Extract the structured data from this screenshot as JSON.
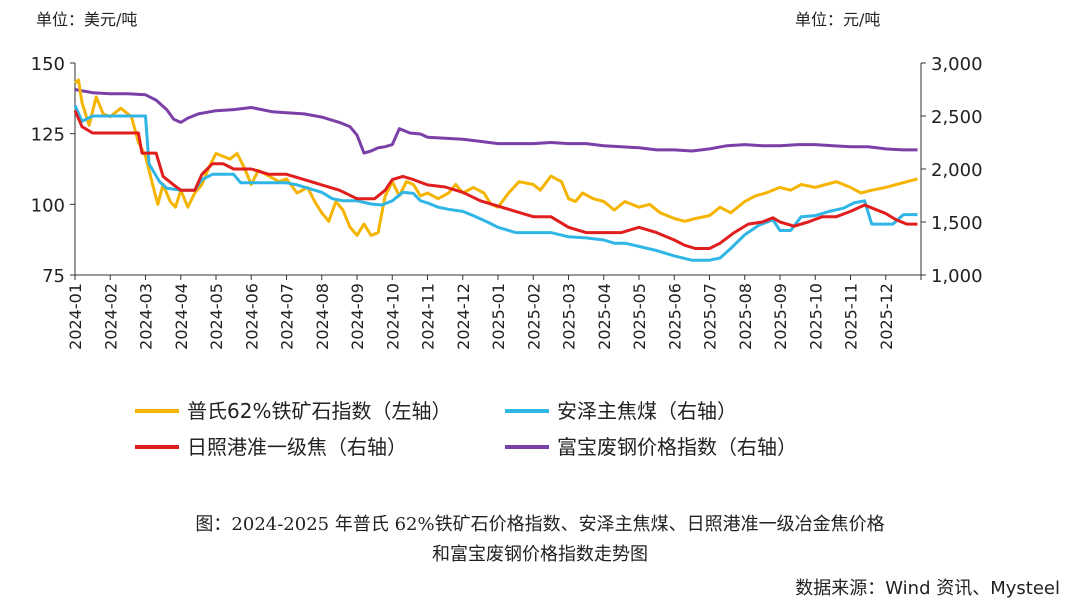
{
  "left_unit": "单位：美元/吨",
  "right_unit": "单位：元/吨",
  "caption_line1": "图：2024-2025 年普氏 62%铁矿石价格指数、安泽主焦煤、日照港准一级冶金焦价格",
  "caption_line2": "和富宝废钢价格指数走势图",
  "source": "数据来源：Wind 资讯、Mysteel",
  "chart_data": {
    "type": "line",
    "x_ticks": [
      "2024-01",
      "2024-02",
      "2024-03",
      "2024-04",
      "2024-05",
      "2024-06",
      "2024-07",
      "2024-08",
      "2024-09",
      "2024-10",
      "2024-11",
      "2024-12",
      "2025-01",
      "2025-02",
      "2025-03",
      "2025-04",
      "2025-05",
      "2025-06",
      "2025-07",
      "2025-08",
      "2025-09",
      "2025-10",
      "2025-11",
      "2025-12"
    ],
    "y_left": {
      "range": [
        75,
        150
      ],
      "ticks": [
        "75",
        "100",
        "125",
        "150"
      ]
    },
    "y_right": {
      "range": [
        1000,
        3000
      ],
      "ticks": [
        "1,000",
        "1,500",
        "2,000",
        "2,500",
        "3,000"
      ]
    },
    "series": [
      {
        "name": "普氏62%铁矿石指数（左轴）",
        "axis": "left",
        "color": "#F5B400",
        "points": [
          [
            0,
            143
          ],
          [
            0.1,
            144
          ],
          [
            0.2,
            136
          ],
          [
            0.4,
            128
          ],
          [
            0.6,
            138
          ],
          [
            0.8,
            132
          ],
          [
            1,
            131
          ],
          [
            1.3,
            134
          ],
          [
            1.6,
            131
          ],
          [
            1.8,
            122
          ],
          [
            2.0,
            117
          ],
          [
            2.2,
            107
          ],
          [
            2.35,
            100
          ],
          [
            2.5,
            107
          ],
          [
            2.7,
            101
          ],
          [
            2.85,
            99
          ],
          [
            3.0,
            105
          ],
          [
            3.2,
            99
          ],
          [
            3.4,
            104
          ],
          [
            3.6,
            107
          ],
          [
            3.8,
            113
          ],
          [
            4.0,
            118
          ],
          [
            4.2,
            117
          ],
          [
            4.4,
            116
          ],
          [
            4.6,
            118
          ],
          [
            4.8,
            113
          ],
          [
            5.0,
            107
          ],
          [
            5.2,
            112
          ],
          [
            5.5,
            110
          ],
          [
            5.8,
            108
          ],
          [
            6.0,
            109
          ],
          [
            6.3,
            104
          ],
          [
            6.6,
            106
          ],
          [
            6.8,
            101
          ],
          [
            7.0,
            97
          ],
          [
            7.2,
            94
          ],
          [
            7.4,
            101
          ],
          [
            7.6,
            98
          ],
          [
            7.8,
            92
          ],
          [
            8.0,
            89
          ],
          [
            8.2,
            93
          ],
          [
            8.4,
            89
          ],
          [
            8.6,
            90
          ],
          [
            8.8,
            103
          ],
          [
            9.0,
            108
          ],
          [
            9.2,
            103
          ],
          [
            9.4,
            108
          ],
          [
            9.6,
            107
          ],
          [
            9.8,
            103
          ],
          [
            10.0,
            104
          ],
          [
            10.3,
            102
          ],
          [
            10.6,
            104
          ],
          [
            10.8,
            107
          ],
          [
            11.0,
            104
          ],
          [
            11.3,
            106
          ],
          [
            11.6,
            104
          ],
          [
            11.8,
            100
          ],
          [
            12.0,
            99
          ],
          [
            12.3,
            104
          ],
          [
            12.6,
            108
          ],
          [
            13.0,
            107
          ],
          [
            13.2,
            105
          ],
          [
            13.5,
            110
          ],
          [
            13.8,
            108
          ],
          [
            14.0,
            102
          ],
          [
            14.2,
            101
          ],
          [
            14.4,
            104
          ],
          [
            14.7,
            102
          ],
          [
            15.0,
            101
          ],
          [
            15.3,
            98
          ],
          [
            15.6,
            101
          ],
          [
            16.0,
            99
          ],
          [
            16.3,
            100
          ],
          [
            16.6,
            97
          ],
          [
            17.0,
            95
          ],
          [
            17.3,
            94
          ],
          [
            17.6,
            95
          ],
          [
            18.0,
            96
          ],
          [
            18.3,
            99
          ],
          [
            18.6,
            97
          ],
          [
            19.0,
            101
          ],
          [
            19.3,
            103
          ],
          [
            19.6,
            104
          ],
          [
            20.0,
            106
          ],
          [
            20.3,
            105
          ],
          [
            20.6,
            107
          ],
          [
            21.0,
            106
          ],
          [
            21.3,
            107
          ],
          [
            21.6,
            108
          ],
          [
            22.0,
            106
          ],
          [
            22.3,
            104
          ],
          [
            22.6,
            105
          ],
          [
            23.0,
            106
          ],
          [
            23.3,
            107
          ],
          [
            23.6,
            108
          ],
          [
            23.9,
            109
          ]
        ]
      },
      {
        "name": "安泽主焦煤（右轴）",
        "axis": "right",
        "color": "#2FB5E6",
        "points": [
          [
            0,
            2600
          ],
          [
            0.2,
            2450
          ],
          [
            0.5,
            2500
          ],
          [
            1.0,
            2500
          ],
          [
            2.0,
            2500
          ],
          [
            2.1,
            2050
          ],
          [
            2.4,
            1880
          ],
          [
            2.6,
            1820
          ],
          [
            3.0,
            1800
          ],
          [
            3.4,
            1800
          ],
          [
            3.6,
            1900
          ],
          [
            3.9,
            1950
          ],
          [
            4.2,
            1950
          ],
          [
            4.5,
            1950
          ],
          [
            4.7,
            1870
          ],
          [
            5.0,
            1870
          ],
          [
            5.5,
            1870
          ],
          [
            6.0,
            1870
          ],
          [
            6.3,
            1850
          ],
          [
            6.6,
            1820
          ],
          [
            7.0,
            1780
          ],
          [
            7.3,
            1720
          ],
          [
            7.6,
            1700
          ],
          [
            8.0,
            1700
          ],
          [
            8.4,
            1670
          ],
          [
            8.7,
            1660
          ],
          [
            9.0,
            1700
          ],
          [
            9.3,
            1780
          ],
          [
            9.6,
            1770
          ],
          [
            9.8,
            1700
          ],
          [
            10.0,
            1680
          ],
          [
            10.3,
            1640
          ],
          [
            10.6,
            1620
          ],
          [
            11.0,
            1600
          ],
          [
            11.3,
            1560
          ],
          [
            11.7,
            1500
          ],
          [
            12.0,
            1450
          ],
          [
            12.5,
            1400
          ],
          [
            13.0,
            1400
          ],
          [
            13.5,
            1400
          ],
          [
            14.0,
            1360
          ],
          [
            14.5,
            1350
          ],
          [
            15.0,
            1330
          ],
          [
            15.3,
            1300
          ],
          [
            15.6,
            1300
          ],
          [
            16.0,
            1270
          ],
          [
            16.5,
            1230
          ],
          [
            17.0,
            1180
          ],
          [
            17.5,
            1140
          ],
          [
            18.0,
            1140
          ],
          [
            18.3,
            1160
          ],
          [
            18.6,
            1250
          ],
          [
            19.0,
            1380
          ],
          [
            19.4,
            1470
          ],
          [
            19.8,
            1520
          ],
          [
            20.0,
            1420
          ],
          [
            20.3,
            1420
          ],
          [
            20.6,
            1550
          ],
          [
            21.0,
            1560
          ],
          [
            21.4,
            1600
          ],
          [
            21.8,
            1630
          ],
          [
            22.1,
            1680
          ],
          [
            22.4,
            1700
          ],
          [
            22.6,
            1480
          ],
          [
            22.8,
            1480
          ],
          [
            23.2,
            1480
          ],
          [
            23.5,
            1570
          ],
          [
            23.9,
            1570
          ]
        ]
      },
      {
        "name": "日照港准一级焦（右轴）",
        "axis": "right",
        "color": "#E01E1E",
        "points": [
          [
            0,
            2550
          ],
          [
            0.2,
            2400
          ],
          [
            0.5,
            2340
          ],
          [
            1.0,
            2340
          ],
          [
            1.8,
            2340
          ],
          [
            1.9,
            2150
          ],
          [
            2.3,
            2150
          ],
          [
            2.5,
            1930
          ],
          [
            2.8,
            1850
          ],
          [
            3.0,
            1800
          ],
          [
            3.4,
            1800
          ],
          [
            3.6,
            1950
          ],
          [
            3.9,
            2050
          ],
          [
            4.2,
            2050
          ],
          [
            4.5,
            2000
          ],
          [
            5.0,
            2000
          ],
          [
            5.5,
            1950
          ],
          [
            6.0,
            1950
          ],
          [
            6.5,
            1900
          ],
          [
            7.0,
            1850
          ],
          [
            7.5,
            1800
          ],
          [
            8.0,
            1720
          ],
          [
            8.5,
            1720
          ],
          [
            8.8,
            1800
          ],
          [
            9.0,
            1900
          ],
          [
            9.3,
            1930
          ],
          [
            9.6,
            1900
          ],
          [
            10.0,
            1850
          ],
          [
            10.5,
            1830
          ],
          [
            11.0,
            1780
          ],
          [
            11.5,
            1700
          ],
          [
            12.0,
            1650
          ],
          [
            12.5,
            1600
          ],
          [
            13.0,
            1550
          ],
          [
            13.5,
            1550
          ],
          [
            14.0,
            1450
          ],
          [
            14.5,
            1400
          ],
          [
            15.0,
            1400
          ],
          [
            15.5,
            1400
          ],
          [
            16.0,
            1450
          ],
          [
            16.5,
            1400
          ],
          [
            17.0,
            1330
          ],
          [
            17.3,
            1280
          ],
          [
            17.6,
            1250
          ],
          [
            18.0,
            1250
          ],
          [
            18.3,
            1300
          ],
          [
            18.7,
            1400
          ],
          [
            19.1,
            1480
          ],
          [
            19.5,
            1500
          ],
          [
            19.8,
            1540
          ],
          [
            20.0,
            1500
          ],
          [
            20.4,
            1460
          ],
          [
            20.8,
            1500
          ],
          [
            21.2,
            1550
          ],
          [
            21.6,
            1550
          ],
          [
            22.0,
            1600
          ],
          [
            22.4,
            1660
          ],
          [
            22.7,
            1620
          ],
          [
            23.0,
            1580
          ],
          [
            23.3,
            1520
          ],
          [
            23.6,
            1480
          ],
          [
            23.9,
            1480
          ]
        ]
      },
      {
        "name": "富宝废钢价格指数（右轴）",
        "axis": "right",
        "color": "#7B3FA8",
        "points": [
          [
            0,
            2750
          ],
          [
            0.5,
            2720
          ],
          [
            1.0,
            2710
          ],
          [
            1.5,
            2710
          ],
          [
            2.0,
            2700
          ],
          [
            2.3,
            2650
          ],
          [
            2.6,
            2560
          ],
          [
            2.8,
            2470
          ],
          [
            3.0,
            2440
          ],
          [
            3.2,
            2480
          ],
          [
            3.5,
            2520
          ],
          [
            4.0,
            2550
          ],
          [
            4.5,
            2560
          ],
          [
            5.0,
            2580
          ],
          [
            5.3,
            2560
          ],
          [
            5.6,
            2540
          ],
          [
            6.0,
            2530
          ],
          [
            6.5,
            2520
          ],
          [
            7.0,
            2490
          ],
          [
            7.5,
            2440
          ],
          [
            7.8,
            2400
          ],
          [
            8.0,
            2320
          ],
          [
            8.2,
            2150
          ],
          [
            8.4,
            2170
          ],
          [
            8.6,
            2200
          ],
          [
            8.8,
            2210
          ],
          [
            9.0,
            2230
          ],
          [
            9.2,
            2380
          ],
          [
            9.5,
            2340
          ],
          [
            9.8,
            2330
          ],
          [
            10.0,
            2300
          ],
          [
            10.5,
            2290
          ],
          [
            11.0,
            2280
          ],
          [
            11.5,
            2260
          ],
          [
            12.0,
            2240
          ],
          [
            12.5,
            2240
          ],
          [
            13.0,
            2240
          ],
          [
            13.5,
            2250
          ],
          [
            14.0,
            2240
          ],
          [
            14.5,
            2240
          ],
          [
            15.0,
            2220
          ],
          [
            15.5,
            2210
          ],
          [
            16.0,
            2200
          ],
          [
            16.5,
            2180
          ],
          [
            17.0,
            2180
          ],
          [
            17.5,
            2170
          ],
          [
            18.0,
            2190
          ],
          [
            18.5,
            2220
          ],
          [
            19.0,
            2230
          ],
          [
            19.5,
            2220
          ],
          [
            20.0,
            2220
          ],
          [
            20.5,
            2230
          ],
          [
            21.0,
            2230
          ],
          [
            21.5,
            2220
          ],
          [
            22.0,
            2210
          ],
          [
            22.5,
            2210
          ],
          [
            23.0,
            2190
          ],
          [
            23.5,
            2180
          ],
          [
            23.9,
            2180
          ]
        ]
      }
    ],
    "legend": {
      "position": "bottom",
      "rows": [
        [
          0,
          1
        ],
        [
          2,
          3
        ]
      ]
    }
  }
}
